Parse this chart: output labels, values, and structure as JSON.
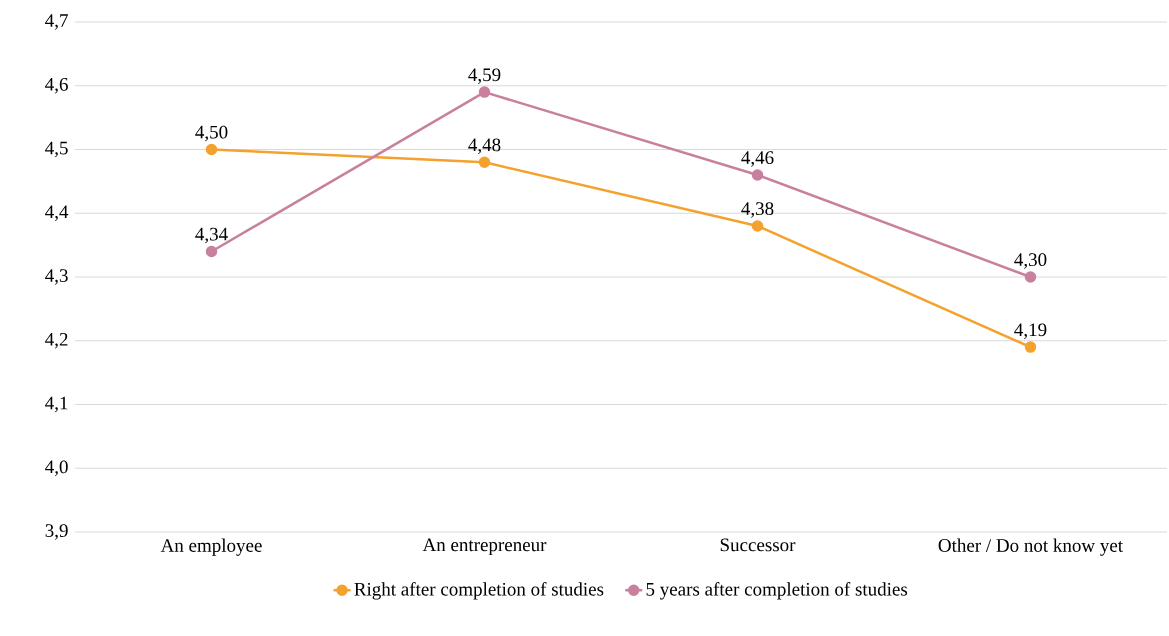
{
  "chart_data": {
    "type": "line",
    "categories": [
      "An employee",
      "An entrepreneur",
      "Successor",
      "Other / Do not know yet"
    ],
    "series": [
      {
        "name": "Right after completion of  studies",
        "color": "#f4a22d",
        "values": [
          4.5,
          4.48,
          4.38,
          4.19
        ],
        "value_labels": [
          "4,50",
          "4,48",
          "4,38",
          "4,19"
        ]
      },
      {
        "name": "5 years after completion of  studies",
        "color": "#c9809e",
        "values": [
          4.34,
          4.59,
          4.46,
          4.3
        ],
        "value_labels": [
          "4,34",
          "4,59",
          "4,46",
          "4,30"
        ]
      }
    ],
    "ylim": [
      3.9,
      4.7
    ],
    "yticks": [
      {
        "value": 3.9,
        "label": "3,9"
      },
      {
        "value": 4.0,
        "label": "4,0"
      },
      {
        "value": 4.1,
        "label": "4,1"
      },
      {
        "value": 4.2,
        "label": "4,2"
      },
      {
        "value": 4.3,
        "label": "4,3"
      },
      {
        "value": 4.4,
        "label": "4,4"
      },
      {
        "value": 4.5,
        "label": "4,5"
      },
      {
        "value": 4.6,
        "label": "4,6"
      },
      {
        "value": 4.7,
        "label": "4,7"
      }
    ],
    "grid": "y",
    "legend": "bottom",
    "marker": "circle"
  }
}
